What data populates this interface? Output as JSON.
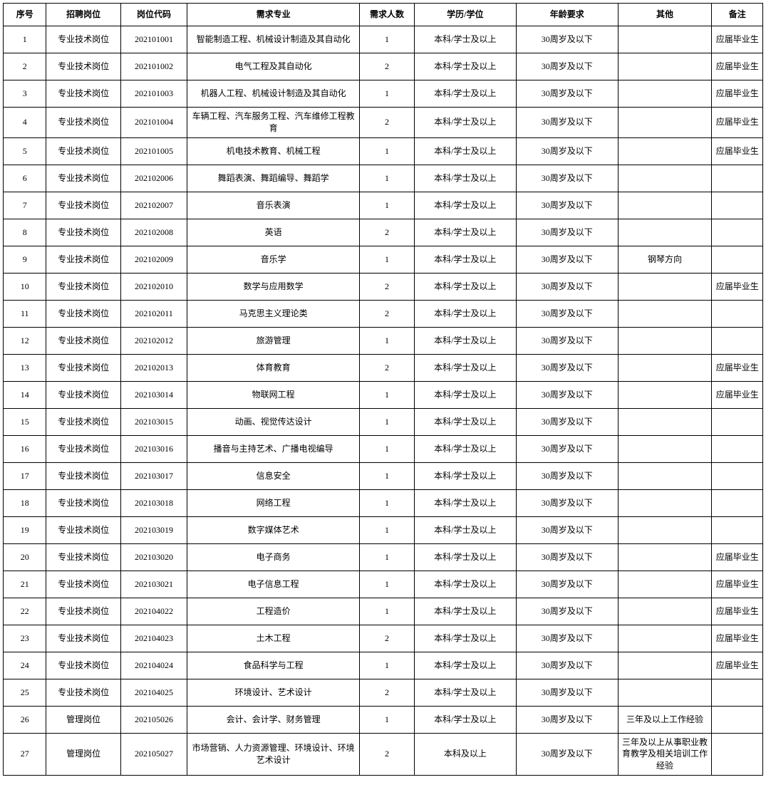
{
  "table": {
    "columns": [
      "序号",
      "招聘岗位",
      "岗位代码",
      "需求专业",
      "需求人数",
      "学历/学位",
      "年龄要求",
      "其他",
      "备注"
    ],
    "rows": [
      [
        "1",
        "专业技术岗位",
        "202101001",
        "智能制造工程、机械设计制造及其自动化",
        "1",
        "本科/学士及以上",
        "30周岁及以下",
        "",
        "应届毕业生"
      ],
      [
        "2",
        "专业技术岗位",
        "202101002",
        "电气工程及其自动化",
        "2",
        "本科/学士及以上",
        "30周岁及以下",
        "",
        "应届毕业生"
      ],
      [
        "3",
        "专业技术岗位",
        "202101003",
        "机器人工程、机械设计制造及其自动化",
        "1",
        "本科/学士及以上",
        "30周岁及以下",
        "",
        "应届毕业生"
      ],
      [
        "4",
        "专业技术岗位",
        "202101004",
        "车辆工程、汽车服务工程、汽车维修工程教育",
        "2",
        "本科/学士及以上",
        "30周岁及以下",
        "",
        "应届毕业生"
      ],
      [
        "5",
        "专业技术岗位",
        "202101005",
        "机电技术教育、机械工程",
        "1",
        "本科/学士及以上",
        "30周岁及以下",
        "",
        "应届毕业生"
      ],
      [
        "6",
        "专业技术岗位",
        "202102006",
        "舞蹈表演、舞蹈编导、舞蹈学",
        "1",
        "本科/学士及以上",
        "30周岁及以下",
        "",
        ""
      ],
      [
        "7",
        "专业技术岗位",
        "202102007",
        "音乐表演",
        "1",
        "本科/学士及以上",
        "30周岁及以下",
        "",
        ""
      ],
      [
        "8",
        "专业技术岗位",
        "202102008",
        "英语",
        "2",
        "本科/学士及以上",
        "30周岁及以下",
        "",
        ""
      ],
      [
        "9",
        "专业技术岗位",
        "202102009",
        "音乐学",
        "1",
        "本科/学士及以上",
        "30周岁及以下",
        "钢琴方向",
        ""
      ],
      [
        "10",
        "专业技术岗位",
        "202102010",
        "数学与应用数学",
        "2",
        "本科/学士及以上",
        "30周岁及以下",
        "",
        "应届毕业生"
      ],
      [
        "11",
        "专业技术岗位",
        "202102011",
        "马克思主义理论类",
        "2",
        "本科/学士及以上",
        "30周岁及以下",
        "",
        ""
      ],
      [
        "12",
        "专业技术岗位",
        "202102012",
        "旅游管理",
        "1",
        "本科/学士及以上",
        "30周岁及以下",
        "",
        ""
      ],
      [
        "13",
        "专业技术岗位",
        "202102013",
        "体育教育",
        "2",
        "本科/学士及以上",
        "30周岁及以下",
        "",
        "应届毕业生"
      ],
      [
        "14",
        "专业技术岗位",
        "202103014",
        "物联网工程",
        "1",
        "本科/学士及以上",
        "30周岁及以下",
        "",
        "应届毕业生"
      ],
      [
        "15",
        "专业技术岗位",
        "202103015",
        "动画、视觉传达设计",
        "1",
        "本科/学士及以上",
        "30周岁及以下",
        "",
        ""
      ],
      [
        "16",
        "专业技术岗位",
        "202103016",
        "播音与主持艺术、广播电视编导",
        "1",
        "本科/学士及以上",
        "30周岁及以下",
        "",
        ""
      ],
      [
        "17",
        "专业技术岗位",
        "202103017",
        "信息安全",
        "1",
        "本科/学士及以上",
        "30周岁及以下",
        "",
        ""
      ],
      [
        "18",
        "专业技术岗位",
        "202103018",
        "网络工程",
        "1",
        "本科/学士及以上",
        "30周岁及以下",
        "",
        ""
      ],
      [
        "19",
        "专业技术岗位",
        "202103019",
        "数字媒体艺术",
        "1",
        "本科/学士及以上",
        "30周岁及以下",
        "",
        ""
      ],
      [
        "20",
        "专业技术岗位",
        "202103020",
        "电子商务",
        "1",
        "本科/学士及以上",
        "30周岁及以下",
        "",
        "应届毕业生"
      ],
      [
        "21",
        "专业技术岗位",
        "202103021",
        "电子信息工程",
        "1",
        "本科/学士及以上",
        "30周岁及以下",
        "",
        "应届毕业生"
      ],
      [
        "22",
        "专业技术岗位",
        "202104022",
        "工程造价",
        "1",
        "本科/学士及以上",
        "30周岁及以下",
        "",
        "应届毕业生"
      ],
      [
        "23",
        "专业技术岗位",
        "202104023",
        "土木工程",
        "2",
        "本科/学士及以上",
        "30周岁及以下",
        "",
        "应届毕业生"
      ],
      [
        "24",
        "专业技术岗位",
        "202104024",
        "食品科学与工程",
        "1",
        "本科/学士及以上",
        "30周岁及以下",
        "",
        "应届毕业生"
      ],
      [
        "25",
        "专业技术岗位",
        "202104025",
        "环境设计、艺术设计",
        "2",
        "本科/学士及以上",
        "30周岁及以下",
        "",
        ""
      ],
      [
        "26",
        "管理岗位",
        "202105026",
        "会计、会计学、财务管理",
        "1",
        "本科/学士及以上",
        "30周岁及以下",
        "三年及以上工作经验",
        ""
      ],
      [
        "27",
        "管理岗位",
        "202105027",
        "市场营销、人力资源管理、环境设计、环境艺术设计",
        "2",
        "本科及以上",
        "30周岁及以下",
        "三年及以上从事职业教育教学及相关培训工作经验",
        ""
      ]
    ],
    "col_classes": [
      "col-seq",
      "col-position",
      "col-code",
      "col-major",
      "col-count",
      "col-edu",
      "col-age",
      "col-other",
      "col-remark"
    ]
  }
}
